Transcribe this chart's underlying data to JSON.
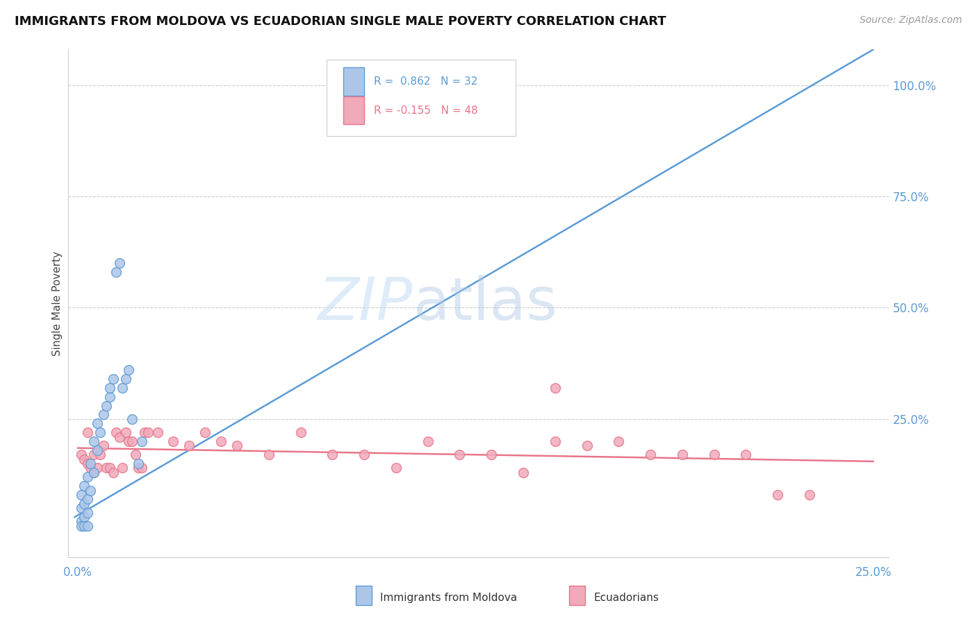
{
  "title": "IMMIGRANTS FROM MOLDOVA VS ECUADORIAN SINGLE MALE POVERTY CORRELATION CHART",
  "source": "Source: ZipAtlas.com",
  "ylabel": "Single Male Poverty",
  "watermark_zip": "ZIP",
  "watermark_atlas": "atlas",
  "blue_scatter_x": [
    0.001,
    0.001,
    0.001,
    0.002,
    0.002,
    0.002,
    0.003,
    0.003,
    0.003,
    0.004,
    0.004,
    0.005,
    0.005,
    0.006,
    0.006,
    0.007,
    0.008,
    0.009,
    0.01,
    0.01,
    0.011,
    0.012,
    0.013,
    0.014,
    0.015,
    0.016,
    0.017,
    0.019,
    0.02,
    0.001,
    0.002,
    0.003
  ],
  "blue_scatter_y": [
    0.02,
    0.05,
    0.08,
    0.03,
    0.06,
    0.1,
    0.04,
    0.07,
    0.12,
    0.09,
    0.15,
    0.13,
    0.2,
    0.18,
    0.24,
    0.22,
    0.26,
    0.28,
    0.3,
    0.32,
    0.34,
    0.58,
    0.6,
    0.32,
    0.34,
    0.36,
    0.25,
    0.15,
    0.2,
    0.01,
    0.01,
    0.01
  ],
  "pink_scatter_x": [
    0.001,
    0.002,
    0.003,
    0.003,
    0.004,
    0.005,
    0.005,
    0.006,
    0.007,
    0.008,
    0.009,
    0.01,
    0.011,
    0.012,
    0.013,
    0.014,
    0.015,
    0.016,
    0.017,
    0.018,
    0.019,
    0.02,
    0.021,
    0.022,
    0.025,
    0.03,
    0.035,
    0.04,
    0.045,
    0.05,
    0.06,
    0.07,
    0.08,
    0.09,
    0.1,
    0.11,
    0.12,
    0.13,
    0.14,
    0.15,
    0.16,
    0.17,
    0.18,
    0.19,
    0.2,
    0.21,
    0.22,
    0.23
  ],
  "pink_scatter_y": [
    0.17,
    0.16,
    0.15,
    0.22,
    0.14,
    0.17,
    0.13,
    0.14,
    0.17,
    0.19,
    0.14,
    0.14,
    0.13,
    0.22,
    0.21,
    0.14,
    0.22,
    0.2,
    0.2,
    0.17,
    0.14,
    0.14,
    0.22,
    0.22,
    0.22,
    0.2,
    0.19,
    0.22,
    0.2,
    0.19,
    0.17,
    0.22,
    0.17,
    0.17,
    0.14,
    0.2,
    0.17,
    0.17,
    0.13,
    0.2,
    0.19,
    0.2,
    0.17,
    0.17,
    0.17,
    0.17,
    0.08,
    0.08
  ],
  "pink_outlier_x": [
    0.15
  ],
  "pink_outlier_y": [
    0.32
  ],
  "blue_line_x": [
    -0.001,
    0.25
  ],
  "blue_line_y": [
    0.03,
    1.08
  ],
  "pink_line_x": [
    0.0,
    0.25
  ],
  "pink_line_y": [
    0.185,
    0.155
  ],
  "xlim": [
    -0.003,
    0.255
  ],
  "ylim": [
    -0.06,
    1.08
  ],
  "yticks": [
    0.0,
    0.25,
    0.5,
    0.75,
    1.0
  ],
  "ytick_labels": [
    "",
    "25.0%",
    "50.0%",
    "75.0%",
    "100.0%"
  ],
  "xtick_labels_positions": [
    0.0,
    0.25
  ],
  "xtick_labels_text": [
    "0.0%",
    "25.0%"
  ],
  "blue_color": "#5b9bd5",
  "pink_color": "#e8758a",
  "blue_scatter_color": "#adc6e8",
  "pink_scatter_color": "#f0aaba",
  "grid_color": "#cccccc",
  "background_color": "#ffffff",
  "legend_R1": "R =  0.862",
  "legend_N1": "N = 32",
  "legend_R2": "R = -0.155",
  "legend_N2": "N = 48",
  "legend_label1": "Immigrants from Moldova",
  "legend_label2": "Ecuadorians"
}
